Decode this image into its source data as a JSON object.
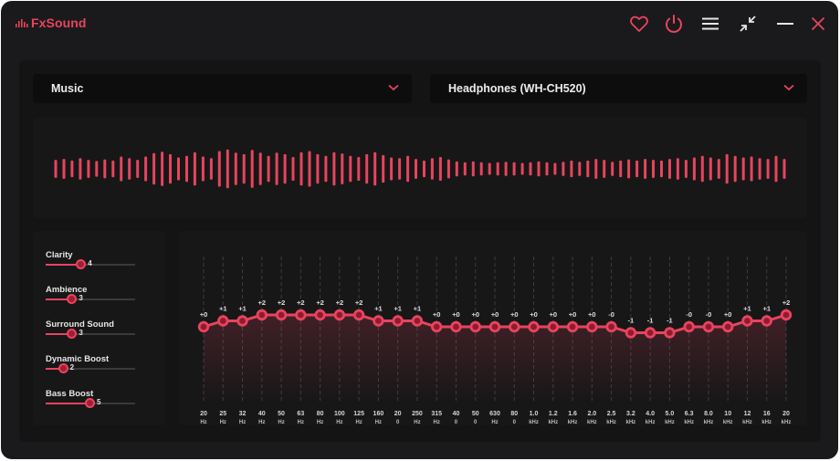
{
  "app": {
    "name": "FxSound"
  },
  "titlebar": {
    "icons": [
      "heart-icon",
      "power-icon",
      "menu-icon",
      "minimize-view-icon",
      "minimize-icon",
      "close-icon"
    ]
  },
  "preset": {
    "value": "Music"
  },
  "device": {
    "value": "Headphones (WH-CH520)"
  },
  "colors": {
    "accent": "#e8445e",
    "background": "#1a1a1c",
    "panel": "#141415"
  },
  "waveform": {
    "levels": [
      0.38,
      0.42,
      0.35,
      0.45,
      0.38,
      0.33,
      0.4,
      0.35,
      0.52,
      0.45,
      0.38,
      0.52,
      0.66,
      0.72,
      0.62,
      0.48,
      0.55,
      0.7,
      0.52,
      0.45,
      0.75,
      0.82,
      0.68,
      0.62,
      0.8,
      0.68,
      0.55,
      0.68,
      0.62,
      0.5,
      0.7,
      0.75,
      0.62,
      0.55,
      0.7,
      0.65,
      0.55,
      0.5,
      0.62,
      0.7,
      0.58,
      0.48,
      0.45,
      0.55,
      0.42,
      0.35,
      0.45,
      0.5,
      0.4,
      0.32,
      0.28,
      0.32,
      0.28,
      0.25,
      0.28,
      0.3,
      0.28,
      0.25,
      0.28,
      0.32,
      0.28,
      0.25,
      0.3,
      0.35,
      0.3,
      0.35,
      0.42,
      0.38,
      0.3,
      0.35,
      0.4,
      0.35,
      0.42,
      0.38,
      0.35,
      0.42,
      0.45,
      0.38,
      0.48,
      0.55,
      0.48,
      0.42,
      0.62,
      0.55,
      0.48,
      0.52,
      0.45,
      0.42,
      0.55,
      0.42
    ]
  },
  "effects": [
    {
      "label": "Clarity",
      "value": "4",
      "level": 0.4
    },
    {
      "label": "Ambience",
      "value": "3",
      "level": 0.3
    },
    {
      "label": "Surround Sound",
      "value": "3",
      "level": 0.3
    },
    {
      "label": "Dynamic Boost",
      "value": "2",
      "level": 0.2
    },
    {
      "label": "Bass Boost",
      "value": "5",
      "level": 0.5
    }
  ],
  "equalizer": {
    "range": [
      -12,
      12
    ],
    "bands": [
      {
        "freq": "20",
        "unit": "Hz",
        "gain": 0,
        "label": "+0"
      },
      {
        "freq": "25",
        "unit": "Hz",
        "gain": 1,
        "label": "+1"
      },
      {
        "freq": "32",
        "unit": "Hz",
        "gain": 1,
        "label": "+1"
      },
      {
        "freq": "40",
        "unit": "Hz",
        "gain": 2,
        "label": "+2"
      },
      {
        "freq": "50",
        "unit": "Hz",
        "gain": 2,
        "label": "+2"
      },
      {
        "freq": "63",
        "unit": "Hz",
        "gain": 2,
        "label": "+2"
      },
      {
        "freq": "80",
        "unit": "Hz",
        "gain": 2,
        "label": "+2"
      },
      {
        "freq": "100",
        "unit": "Hz",
        "gain": 2,
        "label": "+2"
      },
      {
        "freq": "125",
        "unit": "Hz",
        "gain": 2,
        "label": "+2"
      },
      {
        "freq": "160",
        "unit": "Hz",
        "gain": 1,
        "label": "+1"
      },
      {
        "freq": "20",
        "unit": "0",
        "gain": 1,
        "label": "+1"
      },
      {
        "freq": "250",
        "unit": "Hz",
        "gain": 1,
        "label": "+1"
      },
      {
        "freq": "315",
        "unit": "Hz",
        "gain": 0,
        "label": "+0"
      },
      {
        "freq": "40",
        "unit": "0",
        "gain": 0,
        "label": "+0"
      },
      {
        "freq": "50",
        "unit": "0",
        "gain": 0,
        "label": "+0"
      },
      {
        "freq": "630",
        "unit": "Hz",
        "gain": 0,
        "label": "+0"
      },
      {
        "freq": "80",
        "unit": "0",
        "gain": 0,
        "label": "+0"
      },
      {
        "freq": "1.0",
        "unit": "kHz",
        "gain": 0,
        "label": "+0"
      },
      {
        "freq": "1.2",
        "unit": "kHz",
        "gain": 0,
        "label": "+0"
      },
      {
        "freq": "1.6",
        "unit": "kHz",
        "gain": 0,
        "label": "+0"
      },
      {
        "freq": "2.0",
        "unit": "kHz",
        "gain": 0,
        "label": "+0"
      },
      {
        "freq": "2.5",
        "unit": "kHz",
        "gain": 0,
        "label": "-0"
      },
      {
        "freq": "3.2",
        "unit": "kHz",
        "gain": -1,
        "label": "-1"
      },
      {
        "freq": "4.0",
        "unit": "kHz",
        "gain": -1,
        "label": "-1"
      },
      {
        "freq": "5.0",
        "unit": "kHz",
        "gain": -1,
        "label": "-1"
      },
      {
        "freq": "6.3",
        "unit": "kHz",
        "gain": 0,
        "label": "-0"
      },
      {
        "freq": "8.0",
        "unit": "kHz",
        "gain": 0,
        "label": "-0"
      },
      {
        "freq": "10",
        "unit": "kHz",
        "gain": 0,
        "label": "+0"
      },
      {
        "freq": "12",
        "unit": "kHz",
        "gain": 1,
        "label": "+1"
      },
      {
        "freq": "16",
        "unit": "kHz",
        "gain": 1,
        "label": "+1"
      },
      {
        "freq": "20",
        "unit": "kHz",
        "gain": 2,
        "label": "+2"
      }
    ]
  }
}
